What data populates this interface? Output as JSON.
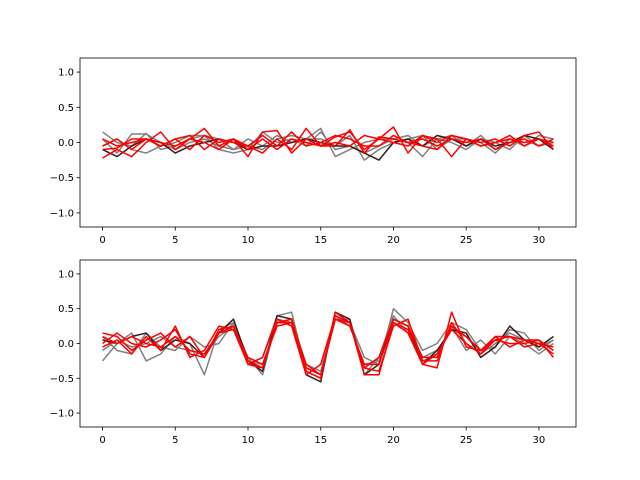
{
  "chart_data": [
    {
      "type": "line",
      "panel": "top",
      "xlim": [
        -1.55,
        32.55
      ],
      "ylim": [
        -1.2,
        1.2
      ],
      "xticks": [
        0,
        5,
        10,
        15,
        20,
        25,
        30
      ],
      "yticks": [
        -1.0,
        -0.5,
        0.0,
        0.5,
        1.0
      ],
      "xtick_labels": [
        "0",
        "5",
        "10",
        "15",
        "20",
        "25",
        "30"
      ],
      "ytick_labels": [
        "−1.0",
        "−0.5",
        "0.0",
        "0.5",
        "1.0"
      ],
      "grid": false,
      "x": [
        0,
        1,
        2,
        3,
        4,
        5,
        6,
        7,
        8,
        9,
        10,
        11,
        12,
        13,
        14,
        15,
        16,
        17,
        18,
        19,
        20,
        21,
        22,
        23,
        24,
        25,
        26,
        27,
        28,
        29,
        30,
        31
      ],
      "series": [
        {
          "color": "#808080",
          "values": [
            0.15,
            0.0,
            -0.05,
            0.13,
            -0.1,
            -0.05,
            0.05,
            0.1,
            0.05,
            -0.1,
            -0.05,
            -0.1,
            0.05,
            0.1,
            0.05,
            0.2,
            -0.2,
            -0.1,
            0.0,
            0.05,
            0.05,
            0.0,
            -0.2,
            0.05,
            0.1,
            -0.05,
            0.1,
            -0.1,
            0.05,
            -0.05,
            0.1,
            0.05
          ]
        },
        {
          "color": "#808080",
          "values": [
            0.05,
            -0.15,
            0.12,
            0.12,
            0.0,
            -0.1,
            0.0,
            0.05,
            -0.05,
            -0.1,
            0.05,
            -0.05,
            0.1,
            0.0,
            0.05,
            0.05,
            -0.05,
            0.1,
            -0.25,
            -0.1,
            0.0,
            0.05,
            0.1,
            -0.1,
            0.05,
            0.05,
            0.0,
            -0.15,
            0.05,
            0.0,
            0.05,
            -0.05
          ]
        },
        {
          "color": "#808080",
          "values": [
            -0.05,
            0.05,
            -0.1,
            -0.15,
            -0.05,
            0.0,
            0.1,
            0.1,
            -0.1,
            -0.15,
            -0.1,
            0.15,
            0.0,
            0.05,
            -0.05,
            0.15,
            -0.1,
            -0.05,
            -0.15,
            -0.05,
            0.05,
            0.1,
            -0.05,
            0.05,
            0.0,
            -0.1,
            0.05,
            0.0,
            -0.1,
            0.1,
            -0.05,
            0.0
          ]
        },
        {
          "color": "#3a1a1a",
          "values": [
            -0.1,
            -0.2,
            -0.05,
            0.05,
            0.0,
            -0.15,
            -0.05,
            0.0,
            0.05,
            0.0,
            -0.1,
            -0.05,
            -0.05,
            0.0,
            0.05,
            0.0,
            -0.05,
            -0.05,
            -0.15,
            -0.25,
            0.0,
            0.05,
            -0.05,
            0.1,
            0.05,
            -0.05,
            0.05,
            -0.05,
            0.0,
            0.1,
            0.05,
            -0.1
          ]
        },
        {
          "color": "#ff0000",
          "values": [
            -0.22,
            -0.1,
            -0.2,
            0.0,
            0.15,
            -0.1,
            0.05,
            0.2,
            -0.05,
            0.05,
            -0.2,
            0.15,
            0.17,
            -0.15,
            0.05,
            -0.05,
            0.08,
            0.15,
            -0.1,
            0.05,
            0.22,
            -0.15,
            0.1,
            0.05,
            -0.2,
            0.05,
            0.0,
            0.05,
            -0.05,
            0.1,
            0.15,
            -0.1
          ]
        },
        {
          "color": "#ff0000",
          "values": [
            -0.05,
            0.05,
            -0.1,
            0.05,
            0.0,
            -0.05,
            0.05,
            0.0,
            -0.1,
            0.05,
            -0.05,
            0.1,
            -0.05,
            0.15,
            -0.05,
            0.0,
            0.1,
            0.05,
            -0.05,
            -0.05,
            0.1,
            0.0,
            -0.05,
            -0.1,
            0.1,
            0.05,
            -0.05,
            0.0,
            0.1,
            -0.05,
            0.05,
            0.0
          ]
        },
        {
          "color": "#ff0000",
          "values": [
            0.05,
            -0.05,
            0.0,
            0.05,
            -0.05,
            0.05,
            0.1,
            -0.1,
            0.05,
            0.0,
            -0.05,
            -0.15,
            0.05,
            -0.1,
            0.2,
            -0.05,
            -0.05,
            0.18,
            -0.15,
            0.08,
            0.05,
            0.0,
            0.05,
            -0.05,
            0.05,
            0.0,
            0.05,
            -0.1,
            0.0,
            0.05,
            -0.05,
            0.05
          ]
        },
        {
          "color": "#ff0000",
          "values": [
            -0.1,
            -0.08,
            0.05,
            0.05,
            -0.05,
            0.05,
            -0.1,
            0.1,
            0.0,
            0.05,
            -0.1,
            0.05,
            -0.1,
            0.05,
            0.0,
            -0.05,
            0.0,
            -0.05,
            0.1,
            0.05,
            0.0,
            -0.05,
            0.1,
            0.0,
            0.1,
            0.05,
            -0.05,
            0.0,
            0.05,
            0.0,
            0.05,
            -0.05
          ]
        }
      ]
    },
    {
      "type": "line",
      "panel": "bottom",
      "xlim": [
        -1.55,
        32.55
      ],
      "ylim": [
        -1.2,
        1.2
      ],
      "xticks": [
        0,
        5,
        10,
        15,
        20,
        25,
        30
      ],
      "yticks": [
        -1.0,
        -0.5,
        0.0,
        0.5,
        1.0
      ],
      "xtick_labels": [
        "0",
        "5",
        "10",
        "15",
        "20",
        "25",
        "30"
      ],
      "ytick_labels": [
        "−1.0",
        "−0.5",
        "0.0",
        "0.5",
        "1.0"
      ],
      "grid": false,
      "x": [
        0,
        1,
        2,
        3,
        4,
        5,
        6,
        7,
        8,
        9,
        10,
        11,
        12,
        13,
        14,
        15,
        16,
        17,
        18,
        19,
        20,
        21,
        22,
        23,
        24,
        25,
        26,
        27,
        28,
        29,
        30,
        31
      ],
      "series": [
        {
          "color": "#808080",
          "values": [
            -0.25,
            0.0,
            0.15,
            -0.25,
            -0.15,
            0.1,
            0.0,
            -0.45,
            0.2,
            0.3,
            -0.3,
            -0.2,
            0.4,
            0.45,
            -0.4,
            -0.5,
            0.45,
            0.3,
            -0.2,
            -0.3,
            0.5,
            0.3,
            -0.1,
            0.0,
            0.3,
            0.2,
            -0.1,
            -0.05,
            0.2,
            0.15,
            -0.1,
            0.05
          ]
        },
        {
          "color": "#808080",
          "values": [
            0.1,
            -0.1,
            -0.15,
            0.15,
            -0.05,
            -0.1,
            0.1,
            -0.05,
            0.0,
            0.3,
            -0.2,
            -0.45,
            0.35,
            0.3,
            -0.35,
            -0.45,
            0.35,
            0.35,
            -0.45,
            -0.2,
            0.4,
            0.15,
            -0.25,
            -0.15,
            0.25,
            -0.1,
            0.05,
            -0.15,
            0.1,
            0.0,
            -0.15,
            0.0
          ]
        },
        {
          "color": "#808080",
          "values": [
            -0.1,
            0.05,
            -0.05,
            0.0,
            0.1,
            -0.05,
            -0.1,
            -0.15,
            0.1,
            0.25,
            -0.25,
            -0.3,
            0.3,
            0.35,
            -0.3,
            -0.4,
            0.4,
            0.25,
            -0.3,
            -0.25,
            0.3,
            0.2,
            -0.2,
            -0.1,
            0.2,
            0.1,
            -0.15,
            0.0,
            0.15,
            0.05,
            -0.05,
            0.05
          ]
        },
        {
          "color": "#3a1a1a",
          "values": [
            0.05,
            0.0,
            0.1,
            0.15,
            -0.1,
            0.05,
            0.0,
            -0.2,
            0.15,
            0.35,
            -0.25,
            -0.4,
            0.4,
            0.35,
            -0.45,
            -0.55,
            0.45,
            0.35,
            -0.45,
            -0.3,
            0.35,
            0.25,
            -0.3,
            -0.1,
            0.2,
            0.15,
            -0.2,
            -0.05,
            0.25,
            0.05,
            -0.05,
            0.1
          ]
        },
        {
          "color": "#ff0000",
          "values": [
            0.15,
            0.1,
            -0.1,
            0.05,
            0.15,
            -0.05,
            0.1,
            -0.2,
            0.2,
            0.25,
            -0.25,
            -0.35,
            0.3,
            0.3,
            -0.4,
            -0.5,
            0.45,
            0.3,
            -0.45,
            -0.45,
            0.3,
            0.15,
            -0.3,
            -0.35,
            0.45,
            -0.05,
            -0.1,
            0.1,
            0.1,
            -0.05,
            0.0,
            -0.15
          ]
        },
        {
          "color": "#ff0000",
          "values": [
            0.0,
            0.15,
            0.0,
            -0.05,
            0.05,
            0.2,
            -0.15,
            -0.2,
            0.15,
            0.2,
            -0.3,
            -0.2,
            0.35,
            0.25,
            -0.45,
            -0.3,
            0.4,
            0.3,
            -0.35,
            -0.4,
            0.25,
            0.35,
            -0.25,
            -0.25,
            0.3,
            0.0,
            -0.15,
            0.1,
            -0.05,
            0.05,
            0.05,
            -0.1
          ]
        },
        {
          "color": "#ff0000",
          "values": [
            -0.05,
            0.05,
            -0.15,
            0.1,
            -0.1,
            0.25,
            -0.2,
            -0.1,
            0.25,
            0.2,
            -0.2,
            -0.3,
            0.25,
            0.3,
            -0.3,
            -0.45,
            0.35,
            0.25,
            -0.3,
            -0.3,
            0.3,
            0.2,
            -0.3,
            -0.15,
            0.2,
            0.0,
            -0.15,
            0.05,
            0.0,
            0.0,
            0.05,
            -0.2
          ]
        },
        {
          "color": "#ff0000",
          "values": [
            0.1,
            0.0,
            0.1,
            0.0,
            -0.05,
            0.1,
            -0.1,
            -0.15,
            0.15,
            0.25,
            -0.3,
            -0.35,
            0.3,
            0.35,
            -0.35,
            -0.45,
            0.35,
            0.3,
            -0.35,
            -0.2,
            0.35,
            0.25,
            -0.2,
            -0.2,
            0.25,
            0.1,
            -0.1,
            0.05,
            0.1,
            0.05,
            0.0,
            -0.05
          ]
        }
      ]
    }
  ]
}
